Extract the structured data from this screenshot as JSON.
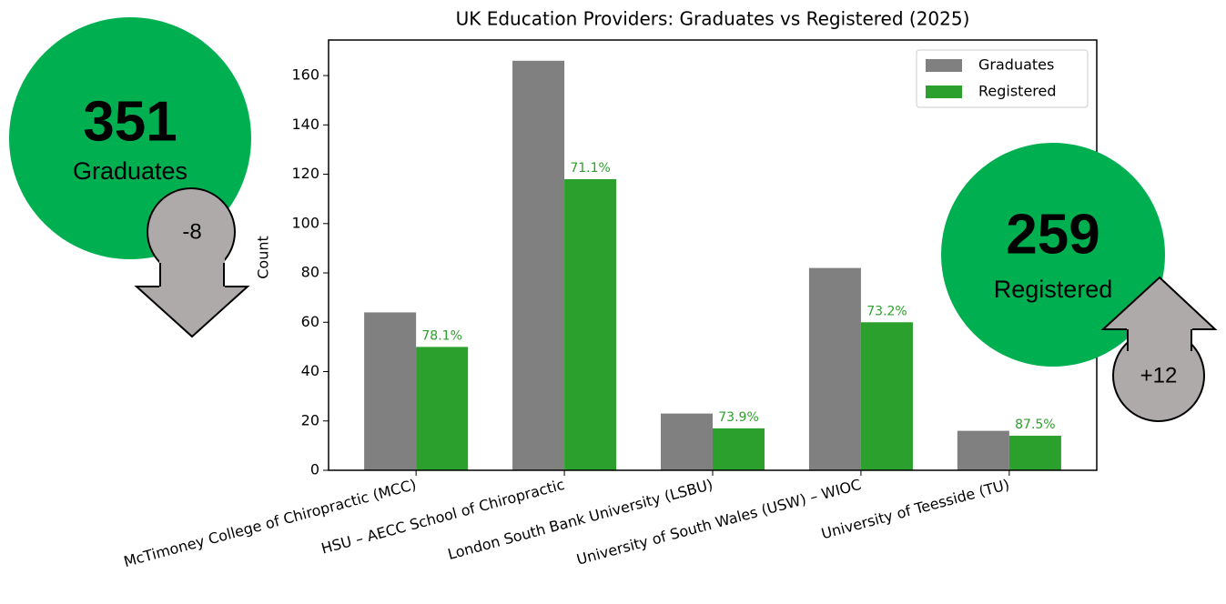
{
  "chart_data": {
    "type": "bar",
    "title": "UK Education Providers: Graduates vs Registered (2025)",
    "y_label": "Count",
    "categories": [
      "McTimoney College of Chiropractic (MCC)",
      "HSU – AECC School of Chiropractic",
      "London South Bank University (LSBU)",
      "University of South Wales (USW) – WIOC",
      "University of Teesside (TU)"
    ],
    "series": [
      {
        "name": "Graduates",
        "color": "#808080",
        "values": [
          64,
          166,
          23,
          82,
          16
        ]
      },
      {
        "name": "Registered",
        "color": "#2ca02c",
        "values": [
          50,
          118,
          17,
          60,
          14
        ]
      }
    ],
    "annotations": [
      "78.1%",
      "71.1%",
      "73.9%",
      "73.2%",
      "87.5%"
    ],
    "ylim": [
      0,
      174.4
    ],
    "yticks": [
      0,
      20,
      40,
      60,
      80,
      100,
      120,
      140,
      160
    ],
    "legend": "upper right"
  },
  "kpis": [
    {
      "value": 351,
      "label": "Graduates",
      "change": "-8"
    },
    {
      "value": 259,
      "label": "Registered",
      "change": "+12"
    }
  ]
}
